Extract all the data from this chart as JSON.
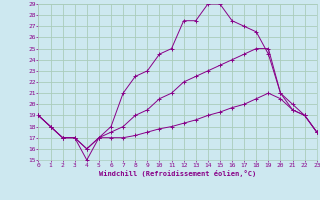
{
  "bg_color": "#cde8f0",
  "grid_color": "#aaccbb",
  "line_color": "#880088",
  "xmin": 0,
  "xmax": 23,
  "ymin": 15,
  "ymax": 29,
  "yticks": [
    15,
    16,
    17,
    18,
    19,
    20,
    21,
    22,
    23,
    24,
    25,
    26,
    27,
    28,
    29
  ],
  "xticks": [
    0,
    1,
    2,
    3,
    4,
    5,
    6,
    7,
    8,
    9,
    10,
    11,
    12,
    13,
    14,
    15,
    16,
    17,
    18,
    19,
    20,
    21,
    22,
    23
  ],
  "xlabel": "Windchill (Refroidissement éolien,°C)",
  "line1_x": [
    0,
    1,
    2,
    3,
    4,
    5,
    6,
    7,
    8,
    9,
    10,
    11,
    12,
    13,
    14,
    15,
    16,
    17,
    18,
    19,
    20,
    21,
    22,
    23
  ],
  "line1_y": [
    19,
    18,
    17,
    17,
    15,
    17,
    18,
    21,
    22.5,
    23,
    24.5,
    25,
    27.5,
    27.5,
    29,
    29,
    27.5,
    27,
    26.5,
    24.5,
    21,
    20,
    19,
    17.5
  ],
  "line2_x": [
    0,
    1,
    2,
    3,
    4,
    5,
    6,
    7,
    8,
    9,
    10,
    11,
    12,
    13,
    14,
    15,
    16,
    17,
    18,
    19,
    20,
    21,
    22,
    23
  ],
  "line2_y": [
    19,
    18,
    17,
    17,
    16,
    17,
    17.5,
    18,
    19,
    19.5,
    20.5,
    21,
    22,
    22.5,
    23,
    23.5,
    24,
    24.5,
    25,
    25,
    21,
    19.5,
    19,
    17.5
  ],
  "line3_x": [
    0,
    1,
    2,
    3,
    4,
    5,
    6,
    7,
    8,
    9,
    10,
    11,
    12,
    13,
    14,
    15,
    16,
    17,
    18,
    19,
    20,
    21,
    22,
    23
  ],
  "line3_y": [
    19,
    18,
    17,
    17,
    16,
    17,
    17,
    17,
    17.2,
    17.5,
    17.8,
    18,
    18.3,
    18.6,
    19,
    19.3,
    19.7,
    20,
    20.5,
    21,
    20.5,
    19.5,
    19,
    17.5
  ]
}
